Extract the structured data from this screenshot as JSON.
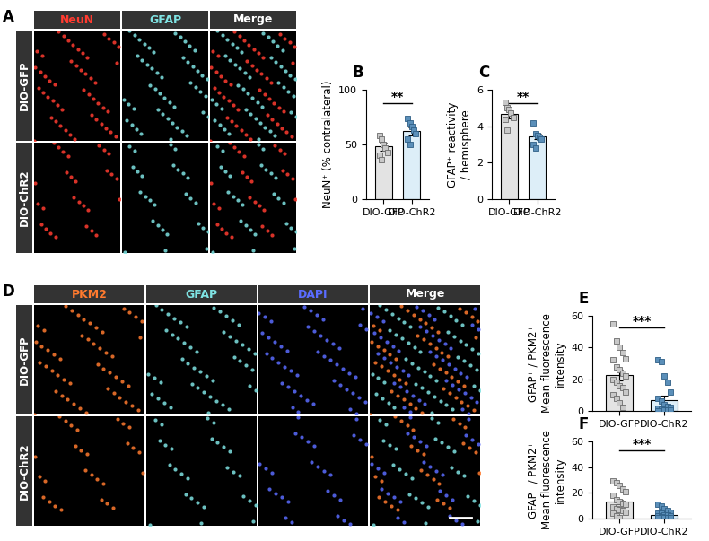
{
  "images": [
    {
      "label": "A",
      "columns": [
        "NeuN",
        "GFAP",
        "Merge"
      ],
      "colors": [
        "#ff3b30",
        "#7fe3e3",
        "#ffffff"
      ],
      "rows": [
        "DIO-GFP",
        "DIO-ChR2"
      ]
    },
    {
      "label": "D",
      "columns": [
        "PKM2",
        "GFAP",
        "DAPI",
        "Merge"
      ],
      "colors": [
        "#ff7a2e",
        "#7fe3e3",
        "#5a6cff",
        "#ffffff"
      ],
      "rows": [
        "DIO-GFP",
        "DIO-ChR2"
      ]
    }
  ],
  "chart_data": [
    {
      "type": "bar",
      "label": "B",
      "categories": [
        "DIO-GFP",
        "DIO-ChR2"
      ],
      "values": [
        48,
        62
      ],
      "errors": [
        3.5,
        3.5
      ],
      "points": [
        [
          58,
          55,
          50,
          47,
          43,
          40,
          36
        ],
        [
          74,
          70,
          66,
          63,
          60,
          55,
          50
        ]
      ],
      "colors": [
        "#e3e3e3",
        "#ddeef8"
      ],
      "marker": "square",
      "ylabel": "NeuN⁺ (% contralateral)",
      "ylim": [
        0,
        100
      ],
      "yticks": [
        0,
        50,
        100
      ],
      "annotation": "**"
    },
    {
      "type": "bar",
      "label": "C",
      "categories": [
        "DIO-GFP",
        "DIO-ChR2"
      ],
      "values": [
        4.65,
        3.45
      ],
      "errors": [
        0.2,
        0.15
      ],
      "points": [
        [
          5.3,
          5.0,
          4.9,
          4.7,
          4.5,
          4.4,
          3.8
        ],
        [
          4.2,
          3.6,
          3.5,
          3.4,
          3.3,
          3.0,
          2.8
        ]
      ],
      "colors": [
        "#e3e3e3",
        "#ddeef8"
      ],
      "marker": "square",
      "ylabel": "GFAP⁺ reactivity\n/ hemisphere",
      "ylim": [
        0,
        6
      ],
      "yticks": [
        0,
        2,
        4,
        6
      ],
      "annotation": "**"
    },
    {
      "type": "bar",
      "label": "E",
      "categories": [
        "DIO-GFP",
        "DIO-ChR2"
      ],
      "values": [
        22.5,
        7
      ],
      "errors": [
        3.5,
        2.5
      ],
      "points": [
        [
          55,
          44,
          40,
          37,
          33,
          32,
          28,
          26,
          24,
          22,
          20,
          18,
          16,
          15,
          12,
          10,
          8,
          5,
          2
        ],
        [
          32,
          31,
          22,
          18,
          12,
          8,
          6,
          4,
          3,
          2,
          1.5,
          1,
          0.5,
          0.5,
          0.3,
          0.2
        ]
      ],
      "colors": [
        "#e3e3e3",
        "#ddeef8"
      ],
      "marker": "square",
      "ylabel": "GFAP⁺ / PKM2⁺\nMean fluorescence\nintensity",
      "ylim": [
        0,
        60
      ],
      "yticks": [
        0,
        20,
        40,
        60
      ],
      "annotation": "***"
    },
    {
      "type": "bar",
      "label": "F",
      "categories": [
        "DIO-GFP",
        "DIO-ChR2"
      ],
      "values": [
        13,
        3
      ],
      "errors": [
        2,
        0.7
      ],
      "points": [
        [
          29,
          28,
          26,
          23,
          21,
          18,
          15,
          13,
          12,
          11,
          9,
          8,
          7,
          6,
          5,
          4,
          2,
          1
        ],
        [
          11,
          10,
          8,
          6,
          5,
          4,
          4,
          3,
          3,
          2,
          2,
          1.5,
          1,
          1,
          0.5,
          0.5
        ]
      ],
      "colors": [
        "#e3e3e3",
        "#ddeef8"
      ],
      "marker": "square",
      "ylabel": "GFAP⁻ / PKM2⁺\nMean fluorescence\nintensity",
      "ylim": [
        0,
        60
      ],
      "yticks": [
        0,
        20,
        40,
        60
      ],
      "annotation": "***"
    }
  ]
}
